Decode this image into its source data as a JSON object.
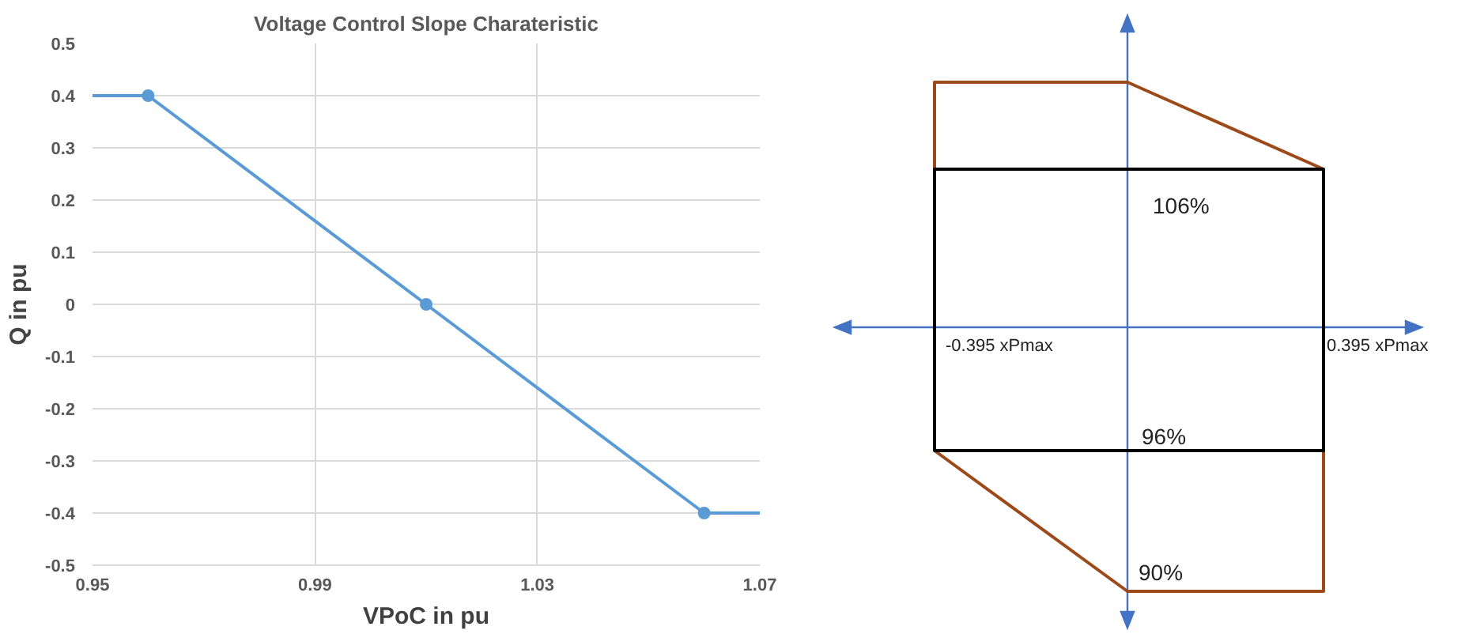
{
  "chart_data": [
    {
      "type": "line",
      "title": "Voltage Control Slope Charateristic",
      "xlabel": "VPoC in pu",
      "ylabel": "Q in pu",
      "series": [
        {
          "type": "line",
          "color": "#5b9bd5",
          "x": [
            0.95,
            0.96,
            1.01,
            1.06,
            1.07
          ],
          "values": [
            0.4,
            0.4,
            0,
            -0.4,
            -0.4
          ],
          "marker": "none"
        },
        {
          "type": "scatter",
          "color": "#5b9bd5",
          "x": [
            0.96,
            1.01,
            1.06
          ],
          "values": [
            0.4,
            0,
            -0.4
          ],
          "marker": "circle"
        }
      ],
      "xlim": [
        0.95,
        1.07
      ],
      "xticks": [
        0.95,
        0.99,
        1.03,
        1.07
      ],
      "ylim": [
        -0.5,
        0.5
      ],
      "yticks": [
        {
          "value": 0.5,
          "label": "0.5"
        },
        {
          "value": 0.4,
          "label": "0.4"
        },
        {
          "value": 0.3,
          "label": "0.3"
        },
        {
          "value": 0.2,
          "label": "0.2"
        },
        {
          "value": 0.1,
          "label": "0.1"
        },
        0,
        {
          "value": -0.1,
          "label": "-0.1"
        },
        {
          "value": -0.2,
          "label": "-0.2"
        },
        {
          "value": -0.3,
          "label": "-0.3"
        },
        {
          "value": -0.4,
          "label": "-0.4"
        },
        {
          "value": -0.5,
          "label": "-0.5"
        }
      ],
      "grid": true
    },
    {
      "type": "other",
      "annotations": [
        "106%",
        "96%",
        "90%",
        "-0.395 xPmax",
        "0.395 xPmax"
      ]
    }
  ]
}
